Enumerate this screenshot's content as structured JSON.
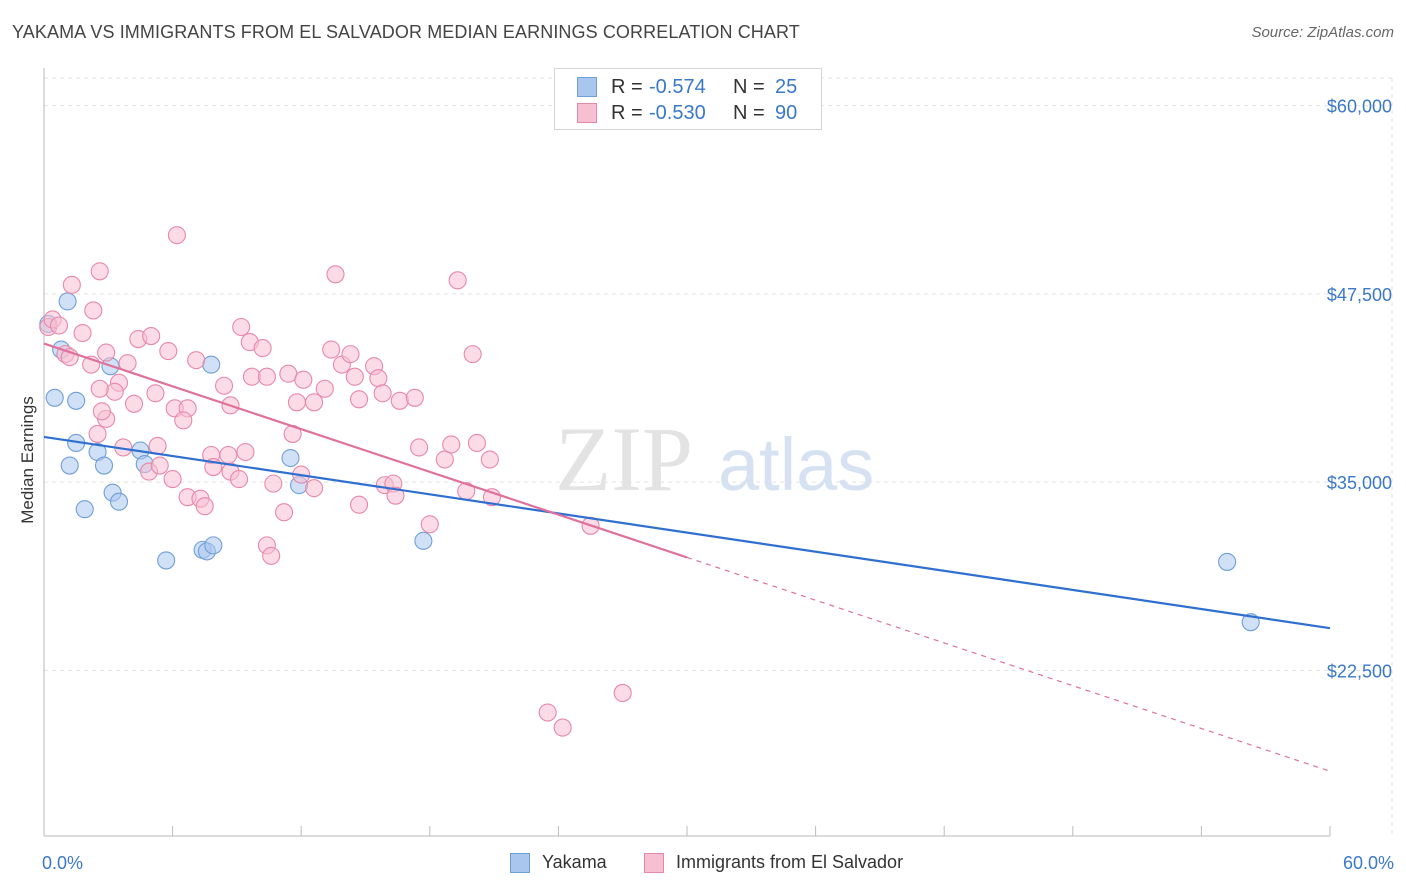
{
  "title": "YAKAMA VS IMMIGRANTS FROM EL SALVADOR MEDIAN EARNINGS CORRELATION CHART",
  "source": "Source: ZipAtlas.com",
  "watermark": {
    "zip": "ZIP",
    "atlas": "atlas"
  },
  "legend_top": [
    {
      "r_label": "R =",
      "r_value": "-0.574",
      "n_label": "N =",
      "n_value": "25",
      "color": "#a9c6ef",
      "border": "#6f9fd8"
    },
    {
      "r_label": "R =",
      "r_value": "-0.530",
      "n_label": "N =",
      "n_value": "90",
      "color": "#f7bfd2",
      "border": "#e888a8"
    }
  ],
  "legend_bottom": [
    {
      "label": "Yakama",
      "color": "#a9c6ef",
      "border": "#6f9fd8"
    },
    {
      "label": "Immigrants from El Salvador",
      "color": "#f7bfd2",
      "border": "#e888a8"
    }
  ],
  "chart_data": {
    "type": "scatter",
    "title": "YAKAMA VS IMMIGRANTS FROM EL SALVADOR MEDIAN EARNINGS CORRELATION CHART",
    "xlabel": "",
    "ylabel": "Median Earnings",
    "xlim": [
      0,
      60
    ],
    "ylim": [
      11500,
      62500
    ],
    "x_tick_labels": [
      "0.0%",
      "60.0%"
    ],
    "y_ticks": [
      22500,
      35000,
      47500,
      60000
    ],
    "y_tick_labels": [
      "$22,500",
      "$35,000",
      "$47,500",
      "$60,000"
    ],
    "grid": true,
    "legend_position": "top-center",
    "series": [
      {
        "name": "Yakama",
        "color": "#6f9fd8",
        "fill": "#a9c6ef",
        "trend": {
          "x0": 0,
          "y0": 38000,
          "x1": 60,
          "y1": 25300,
          "color": "#2f6fd0"
        },
        "points": [
          [
            0.2,
            45500
          ],
          [
            1.1,
            47000
          ],
          [
            0.8,
            43800
          ],
          [
            0.5,
            40600
          ],
          [
            1.5,
            40400
          ],
          [
            3.1,
            42700
          ],
          [
            1.5,
            37600
          ],
          [
            2.5,
            37000
          ],
          [
            4.5,
            37100
          ],
          [
            1.2,
            36100
          ],
          [
            2.8,
            36100
          ],
          [
            4.7,
            36200
          ],
          [
            11.5,
            36600
          ],
          [
            3.2,
            34300
          ],
          [
            3.5,
            33700
          ],
          [
            11.9,
            34800
          ],
          [
            1.9,
            33200
          ],
          [
            7.8,
            42800
          ],
          [
            5.7,
            29800
          ],
          [
            7.4,
            30500
          ],
          [
            7.6,
            30400
          ],
          [
            7.9,
            30800
          ],
          [
            17.7,
            31100
          ],
          [
            55.2,
            29700
          ],
          [
            56.3,
            25700
          ]
        ]
      },
      {
        "name": "Immigrants from El Salvador",
        "color": "#e888a8",
        "fill": "#f7bfd2",
        "trend": {
          "x0": 0,
          "y0": 44200,
          "x1": 30,
          "y1": 30000,
          "dash_to_x": 60,
          "dash_to_y": 15800,
          "color": "#e0719a"
        },
        "points": [
          [
            0.2,
            45300
          ],
          [
            0.4,
            45800
          ],
          [
            0.7,
            45400
          ],
          [
            1.3,
            48100
          ],
          [
            2.6,
            49000
          ],
          [
            2.3,
            46400
          ],
          [
            6.2,
            51400
          ],
          [
            13.6,
            48800
          ],
          [
            19.3,
            48400
          ],
          [
            1.0,
            43500
          ],
          [
            1.2,
            43300
          ],
          [
            1.8,
            44900
          ],
          [
            2.2,
            42800
          ],
          [
            2.9,
            43600
          ],
          [
            3.5,
            41600
          ],
          [
            3.9,
            42900
          ],
          [
            4.4,
            44500
          ],
          [
            5.0,
            44700
          ],
          [
            5.8,
            43700
          ],
          [
            7.1,
            43100
          ],
          [
            9.2,
            45300
          ],
          [
            9.6,
            44300
          ],
          [
            10.2,
            43900
          ],
          [
            8.4,
            41400
          ],
          [
            9.7,
            42000
          ],
          [
            10.4,
            42000
          ],
          [
            11.4,
            42200
          ],
          [
            12.1,
            41800
          ],
          [
            12.6,
            40300
          ],
          [
            13.1,
            41200
          ],
          [
            13.4,
            43800
          ],
          [
            13.9,
            42800
          ],
          [
            14.3,
            43500
          ],
          [
            14.5,
            42000
          ],
          [
            15.4,
            42700
          ],
          [
            15.6,
            41900
          ],
          [
            15.8,
            40900
          ],
          [
            16.6,
            40400
          ],
          [
            17.3,
            40600
          ],
          [
            20.0,
            43500
          ],
          [
            3.3,
            41000
          ],
          [
            2.6,
            41200
          ],
          [
            4.2,
            40200
          ],
          [
            5.2,
            40900
          ],
          [
            6.1,
            39900
          ],
          [
            6.7,
            39900
          ],
          [
            8.7,
            40100
          ],
          [
            11.8,
            40300
          ],
          [
            14.7,
            40500
          ],
          [
            2.9,
            39200
          ],
          [
            2.5,
            38200
          ],
          [
            5.3,
            37400
          ],
          [
            7.8,
            36800
          ],
          [
            8.6,
            36800
          ],
          [
            9.4,
            37000
          ],
          [
            11.6,
            38200
          ],
          [
            17.5,
            37300
          ],
          [
            18.7,
            36500
          ],
          [
            19.0,
            37500
          ],
          [
            20.2,
            37600
          ],
          [
            20.8,
            36500
          ],
          [
            4.9,
            35700
          ],
          [
            5.4,
            36100
          ],
          [
            6.0,
            35200
          ],
          [
            7.9,
            36000
          ],
          [
            8.7,
            35700
          ],
          [
            9.1,
            35200
          ],
          [
            10.7,
            34900
          ],
          [
            12.0,
            35500
          ],
          [
            12.6,
            34600
          ],
          [
            15.9,
            34800
          ],
          [
            16.3,
            34900
          ],
          [
            16.4,
            34100
          ],
          [
            19.7,
            34400
          ],
          [
            20.9,
            34000
          ],
          [
            6.7,
            34000
          ],
          [
            7.3,
            33900
          ],
          [
            7.5,
            33400
          ],
          [
            11.2,
            33000
          ],
          [
            14.7,
            33500
          ],
          [
            10.4,
            30800
          ],
          [
            10.6,
            30100
          ],
          [
            18.0,
            32200
          ],
          [
            25.5,
            32100
          ],
          [
            27.0,
            21000
          ],
          [
            23.5,
            19700
          ],
          [
            24.2,
            18700
          ],
          [
            2.7,
            39700
          ],
          [
            6.5,
            39100
          ],
          [
            3.7,
            37300
          ]
        ]
      }
    ]
  }
}
